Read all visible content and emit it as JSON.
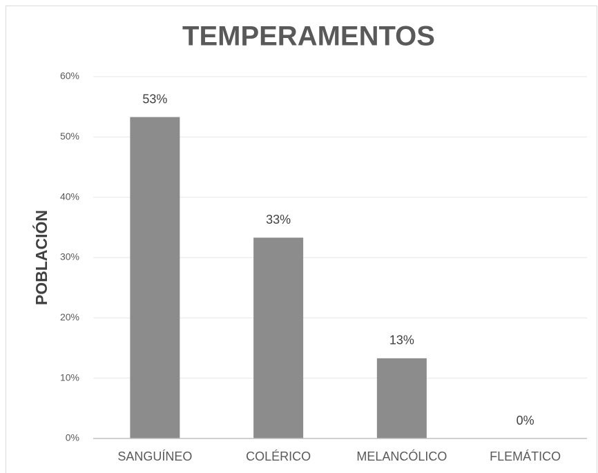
{
  "chart_data": {
    "type": "bar",
    "title": "TEMPERAMENTOS",
    "y_label": "POBLACIÓN",
    "categories": [
      "SANGUÍNEO",
      "COLÉRICO",
      "MELANCÓLICO",
      "FLEMÁTICO"
    ],
    "values": [
      53.3,
      33.3,
      13.3,
      0
    ],
    "value_labels": [
      "53%",
      "33%",
      "13%",
      "0%"
    ],
    "color": "#8c8c8c",
    "ylim": [
      0,
      60
    ],
    "yticks": [
      {
        "value": 0,
        "label": "0%"
      },
      {
        "value": 10,
        "label": "10%"
      },
      {
        "value": 20,
        "label": "20%"
      },
      {
        "value": 30,
        "label": "30%"
      },
      {
        "value": 40,
        "label": "40%"
      },
      {
        "value": 50,
        "label": "50%"
      },
      {
        "value": 60,
        "label": "60%"
      }
    ],
    "grid": true
  }
}
